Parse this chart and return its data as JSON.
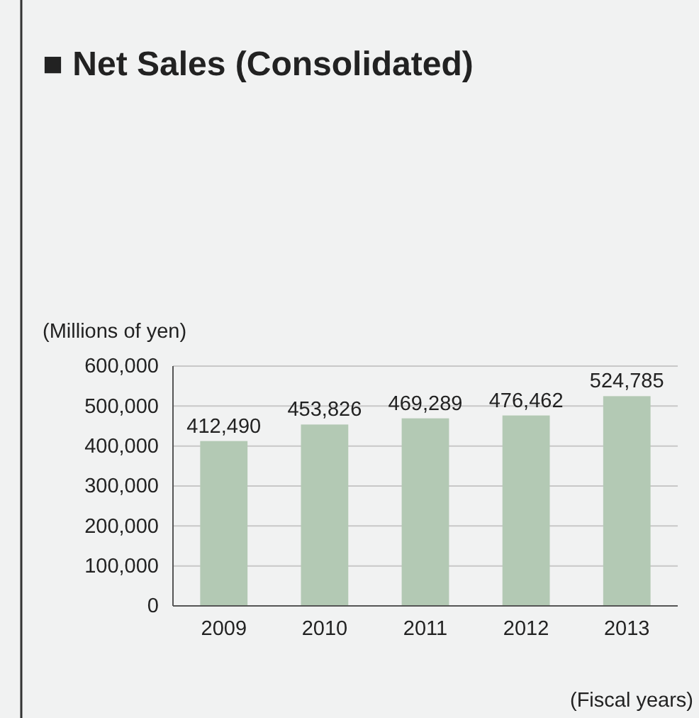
{
  "chart_data": {
    "type": "bar",
    "title": "■ Net Sales (Consolidated)",
    "ylabel": "(Millions of yen)",
    "xlabel": "(Fiscal years)",
    "categories": [
      "2009",
      "2010",
      "2011",
      "2012",
      "2013"
    ],
    "values": [
      412490,
      453826,
      469289,
      476462,
      524785
    ],
    "color": "#b3c9b4",
    "ylim": [
      0,
      600000
    ],
    "yticks": [
      {
        "value": 0,
        "label": "0"
      },
      {
        "value": 100000,
        "label": "100,000"
      },
      {
        "value": 200000,
        "label": "200,000"
      },
      {
        "value": 300000,
        "label": "300,000"
      },
      {
        "value": 400000,
        "label": "400,000"
      },
      {
        "value": 500000,
        "label": "500,000"
      },
      {
        "value": 600000,
        "label": "600,000"
      }
    ],
    "value_labels": [
      "412,490",
      "453,826",
      "469,289",
      "476,462",
      "524,785"
    ],
    "grid": "y"
  }
}
